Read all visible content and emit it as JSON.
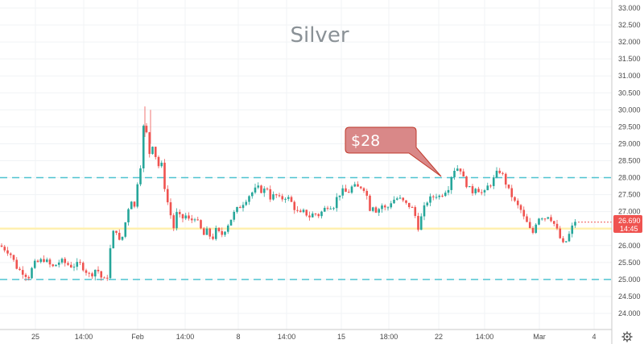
{
  "chart_data": {
    "type": "candlestick",
    "title": "Silver",
    "ylim": [
      23.5,
      33.0
    ],
    "y_ticks": [
      "24.000",
      "24.500",
      "25.000",
      "25.500",
      "26.000",
      "26.500",
      "27.000",
      "27.500",
      "28.000",
      "28.500",
      "29.000",
      "29.500",
      "30.000",
      "30.500",
      "31.000",
      "31.500",
      "32.000",
      "32.500",
      "33.000"
    ],
    "x_ticks": [
      "25",
      "14:00",
      "Feb",
      "14:00",
      "8",
      "14:00",
      "15",
      "18:00",
      "22",
      "14:00",
      "Mar",
      "4"
    ],
    "grid": true,
    "horizontal_lines": [
      {
        "value": 28.0,
        "style": "dashed",
        "color": "#4fc3d0"
      },
      {
        "value": 25.0,
        "style": "dashed",
        "color": "#4fc3d0"
      },
      {
        "value": 26.5,
        "style": "solid",
        "color": "#fff0b0"
      }
    ],
    "annotation": {
      "text": "$28",
      "points_to_value": 28.0
    },
    "last_price": {
      "value": "26.690",
      "countdown": "14:45",
      "color": "#ef5350"
    },
    "colors": {
      "up": "#26a69a",
      "down": "#ef5350"
    },
    "close_path": [
      [
        0,
        26.0
      ],
      [
        12,
        25.8
      ],
      [
        22,
        25.3
      ],
      [
        30,
        25.2
      ],
      [
        35,
        25.05
      ],
      [
        42,
        25.45
      ],
      [
        55,
        25.6
      ],
      [
        65,
        25.35
      ],
      [
        75,
        25.55
      ],
      [
        88,
        25.4
      ],
      [
        100,
        25.45
      ],
      [
        112,
        25.1
      ],
      [
        120,
        25.35
      ],
      [
        128,
        24.95
      ],
      [
        133,
        25.05
      ],
      [
        138,
        26.1
      ],
      [
        143,
        26.6
      ],
      [
        148,
        26.1
      ],
      [
        153,
        26.3
      ],
      [
        158,
        27.0
      ],
      [
        163,
        27.4
      ],
      [
        166,
        26.9
      ],
      [
        170,
        27.8
      ],
      [
        174,
        28.2
      ],
      [
        178,
        29.5
      ],
      [
        182,
        29.3
      ],
      [
        185,
        28.6
      ],
      [
        188,
        29.1
      ],
      [
        192,
        28.8
      ],
      [
        196,
        28.3
      ],
      [
        200,
        28.5
      ],
      [
        204,
        27.8
      ],
      [
        207,
        27.4
      ],
      [
        210,
        27.1
      ],
      [
        213,
        26.8
      ],
      [
        216,
        26.5
      ],
      [
        220,
        27.0
      ],
      [
        225,
        26.75
      ],
      [
        230,
        26.9
      ],
      [
        236,
        26.7
      ],
      [
        242,
        26.85
      ],
      [
        248,
        26.55
      ],
      [
        253,
        26.3
      ],
      [
        258,
        26.45
      ],
      [
        263,
        26.15
      ],
      [
        268,
        26.45
      ],
      [
        275,
        26.3
      ],
      [
        280,
        26.5
      ],
      [
        286,
        26.75
      ],
      [
        292,
        27.0
      ],
      [
        298,
        27.15
      ],
      [
        305,
        27.35
      ],
      [
        310,
        27.5
      ],
      [
        315,
        27.6
      ],
      [
        320,
        27.7
      ],
      [
        326,
        27.6
      ],
      [
        332,
        27.7
      ],
      [
        336,
        27.4
      ],
      [
        342,
        27.5
      ],
      [
        348,
        27.35
      ],
      [
        355,
        27.45
      ],
      [
        360,
        27.35
      ],
      [
        366,
        27.1
      ],
      [
        372,
        26.9
      ],
      [
        378,
        27.0
      ],
      [
        384,
        26.85
      ],
      [
        390,
        26.95
      ],
      [
        396,
        26.9
      ],
      [
        402,
        27.05
      ],
      [
        408,
        27.2
      ],
      [
        414,
        27.15
      ],
      [
        420,
        27.5
      ],
      [
        426,
        27.6
      ],
      [
        432,
        27.55
      ],
      [
        438,
        27.75
      ],
      [
        444,
        27.7
      ],
      [
        450,
        27.75
      ],
      [
        455,
        27.6
      ],
      [
        458,
        27.05
      ],
      [
        463,
        27.2
      ],
      [
        468,
        27.0
      ],
      [
        474,
        27.2
      ],
      [
        480,
        27.05
      ],
      [
        486,
        27.3
      ],
      [
        492,
        27.4
      ],
      [
        498,
        27.35
      ],
      [
        505,
        27.2
      ],
      [
        511,
        27.15
      ],
      [
        517,
        26.8
      ],
      [
        520,
        26.5
      ],
      [
        524,
        26.9
      ],
      [
        530,
        27.3
      ],
      [
        536,
        27.4
      ],
      [
        541,
        27.5
      ],
      [
        546,
        27.45
      ],
      [
        552,
        27.6
      ],
      [
        558,
        27.75
      ],
      [
        562,
        28.2
      ],
      [
        567,
        28.3
      ],
      [
        572,
        28.25
      ],
      [
        576,
        27.95
      ],
      [
        581,
        27.75
      ],
      [
        586,
        27.55
      ],
      [
        591,
        27.75
      ],
      [
        596,
        27.6
      ],
      [
        601,
        27.5
      ],
      [
        606,
        27.75
      ],
      [
        611,
        27.85
      ],
      [
        616,
        28.1
      ],
      [
        621,
        28.2
      ],
      [
        626,
        28.0
      ],
      [
        631,
        27.65
      ],
      [
        636,
        27.45
      ],
      [
        641,
        27.2
      ],
      [
        646,
        27.1
      ],
      [
        651,
        26.8
      ],
      [
        656,
        26.6
      ],
      [
        661,
        26.3
      ],
      [
        666,
        26.7
      ],
      [
        671,
        26.9
      ],
      [
        676,
        26.8
      ],
      [
        681,
        26.9
      ],
      [
        686,
        26.75
      ],
      [
        691,
        26.5
      ],
      [
        696,
        26.2
      ],
      [
        700,
        26.0
      ],
      [
        705,
        26.2
      ],
      [
        710,
        26.5
      ],
      [
        715,
        26.75
      ],
      [
        720,
        26.69
      ]
    ]
  }
}
